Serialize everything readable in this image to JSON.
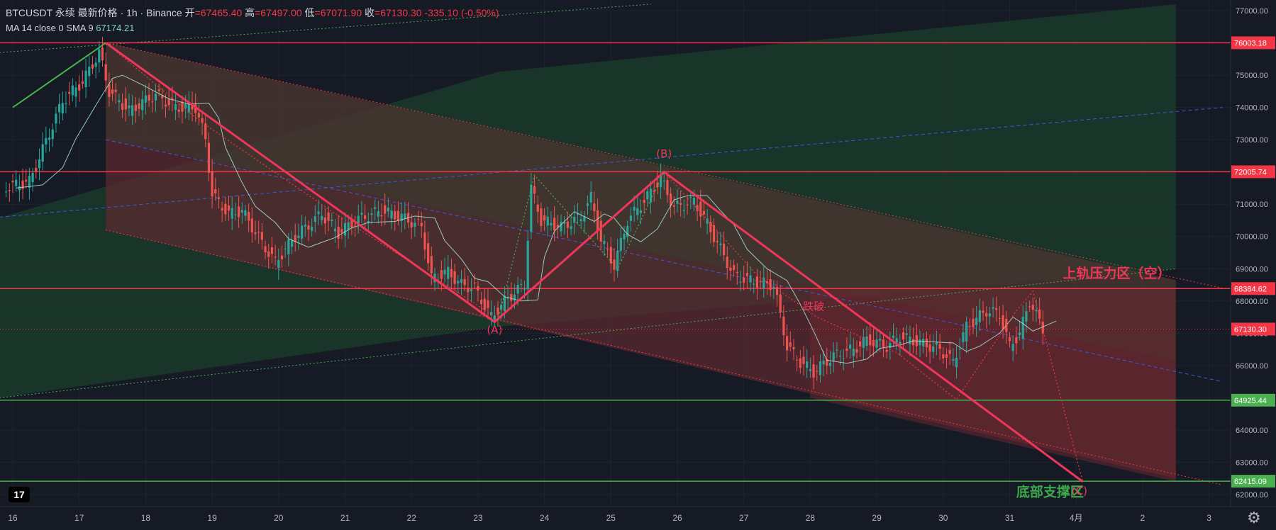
{
  "header": {
    "symbol": "BTCUSDT",
    "contract": "永续",
    "price_label": "最新价格",
    "interval": "1h",
    "exchange": "Binance",
    "open_label": "开",
    "open": "=67465.40",
    "high_label": "高",
    "high": "=67497.00",
    "low_label": "低",
    "low": "=67071.90",
    "close_label": "收",
    "close": "=67130.30",
    "change": "-335.10 (-0.50%)",
    "ma_label": "MA 14 close 0 SMA 9",
    "ma_value": "67174.21"
  },
  "colors": {
    "background": "#161a25",
    "bull": "#26a69a",
    "bear": "#ef5350",
    "red_line": "#f23645",
    "green_line": "#4caf50",
    "green_zone": "#1b3d2a",
    "red_zone": "#5a2a30",
    "brown_zone": "#4a3530"
  },
  "chart_data": {
    "type": "candlestick",
    "x_ticks": [
      "16",
      "17",
      "18",
      "19",
      "20",
      "21",
      "22",
      "23",
      "24",
      "25",
      "26",
      "27",
      "28",
      "29",
      "30",
      "31",
      "4月",
      "2",
      "3"
    ],
    "price_ticks": [
      77000,
      76000,
      75000,
      74000,
      73000,
      72000,
      71000,
      70000,
      69000,
      68000,
      67000,
      66000,
      65000,
      64000,
      63000,
      62000
    ],
    "ylim": [
      61700,
      77200
    ],
    "horizontal_levels": [
      {
        "value": 76003.18,
        "label": "76003.18",
        "color": "red"
      },
      {
        "value": 72005.74,
        "label": "72005.74",
        "color": "red"
      },
      {
        "value": 68384.62,
        "label": "68384.62",
        "color": "red"
      },
      {
        "value": 67130.3,
        "label": "67130.30",
        "color": "red",
        "style": "current"
      },
      {
        "value": 64925.44,
        "label": "64925.44",
        "color": "green"
      },
      {
        "value": 62415.09,
        "label": "62415.09",
        "color": "green"
      }
    ],
    "wave_points": [
      {
        "x": 17.4,
        "y": 76000
      },
      {
        "x": 23.25,
        "y": 67350,
        "label": "(A)"
      },
      {
        "x": 25.8,
        "y": 72000,
        "label": "(B)"
      },
      {
        "x": 32.1,
        "y": 62400,
        "label": "(C)"
      }
    ],
    "path_points": [
      {
        "x": 15.9,
        "y": 71500
      },
      {
        "x": 16.3,
        "y": 71700
      },
      {
        "x": 16.6,
        "y": 73200
      },
      {
        "x": 16.8,
        "y": 74200
      },
      {
        "x": 17.1,
        "y": 74800
      },
      {
        "x": 17.35,
        "y": 75700
      },
      {
        "x": 17.5,
        "y": 74500
      },
      {
        "x": 17.8,
        "y": 73900
      },
      {
        "x": 18.2,
        "y": 74400
      },
      {
        "x": 18.5,
        "y": 74000
      },
      {
        "x": 18.8,
        "y": 74000
      },
      {
        "x": 18.95,
        "y": 73000
      },
      {
        "x": 19.05,
        "y": 71300
      },
      {
        "x": 19.3,
        "y": 70700
      },
      {
        "x": 19.5,
        "y": 70800
      },
      {
        "x": 19.8,
        "y": 69800
      },
      {
        "x": 20.0,
        "y": 69200
      },
      {
        "x": 20.3,
        "y": 70000
      },
      {
        "x": 20.7,
        "y": 70700
      },
      {
        "x": 20.95,
        "y": 70100
      },
      {
        "x": 21.2,
        "y": 70500
      },
      {
        "x": 21.6,
        "y": 70800
      },
      {
        "x": 21.9,
        "y": 70600
      },
      {
        "x": 22.2,
        "y": 70300
      },
      {
        "x": 22.35,
        "y": 68700
      },
      {
        "x": 22.6,
        "y": 68900
      },
      {
        "x": 22.8,
        "y": 68500
      },
      {
        "x": 23.0,
        "y": 68400
      },
      {
        "x": 23.25,
        "y": 67500
      },
      {
        "x": 23.5,
        "y": 68100
      },
      {
        "x": 23.75,
        "y": 68500
      },
      {
        "x": 23.85,
        "y": 71500
      },
      {
        "x": 24.0,
        "y": 70500
      },
      {
        "x": 24.3,
        "y": 70300
      },
      {
        "x": 24.6,
        "y": 70600
      },
      {
        "x": 24.75,
        "y": 71200
      },
      {
        "x": 24.9,
        "y": 69900
      },
      {
        "x": 25.1,
        "y": 69100
      },
      {
        "x": 25.3,
        "y": 70500
      },
      {
        "x": 25.55,
        "y": 71100
      },
      {
        "x": 25.8,
        "y": 71800
      },
      {
        "x": 26.0,
        "y": 70900
      },
      {
        "x": 26.3,
        "y": 71100
      },
      {
        "x": 26.5,
        "y": 70400
      },
      {
        "x": 26.7,
        "y": 69600
      },
      {
        "x": 26.9,
        "y": 68800
      },
      {
        "x": 27.2,
        "y": 68600
      },
      {
        "x": 27.5,
        "y": 68500
      },
      {
        "x": 27.7,
        "y": 66600
      },
      {
        "x": 27.9,
        "y": 66100
      },
      {
        "x": 28.1,
        "y": 65800
      },
      {
        "x": 28.4,
        "y": 66300
      },
      {
        "x": 28.7,
        "y": 66500
      },
      {
        "x": 28.9,
        "y": 66800
      },
      {
        "x": 29.2,
        "y": 66600
      },
      {
        "x": 29.4,
        "y": 66900
      },
      {
        "x": 29.7,
        "y": 66700
      },
      {
        "x": 30.0,
        "y": 66500
      },
      {
        "x": 30.2,
        "y": 66100
      },
      {
        "x": 30.4,
        "y": 67200
      },
      {
        "x": 30.7,
        "y": 67700
      },
      {
        "x": 30.9,
        "y": 67600
      },
      {
        "x": 31.05,
        "y": 66600
      },
      {
        "x": 31.2,
        "y": 67000
      },
      {
        "x": 31.35,
        "y": 68000
      },
      {
        "x": 31.55,
        "y": 67130
      }
    ],
    "annotations": [
      {
        "text": "(A)",
        "x": 23.25,
        "y": 67000,
        "color": "red"
      },
      {
        "text": "(B)",
        "x": 25.8,
        "y": 72450,
        "color": "red"
      },
      {
        "text": "跌破",
        "x": 28.05,
        "y": 67720,
        "color": "red"
      },
      {
        "text": "上轨压力区（空）",
        "x": 31.8,
        "y": 68720,
        "color": "red"
      },
      {
        "text": "底部支撑区",
        "x": 31.1,
        "y": 61950,
        "color": "green"
      },
      {
        "text": "(C)",
        "x": 32.05,
        "y": 62000,
        "color": "red"
      }
    ]
  }
}
